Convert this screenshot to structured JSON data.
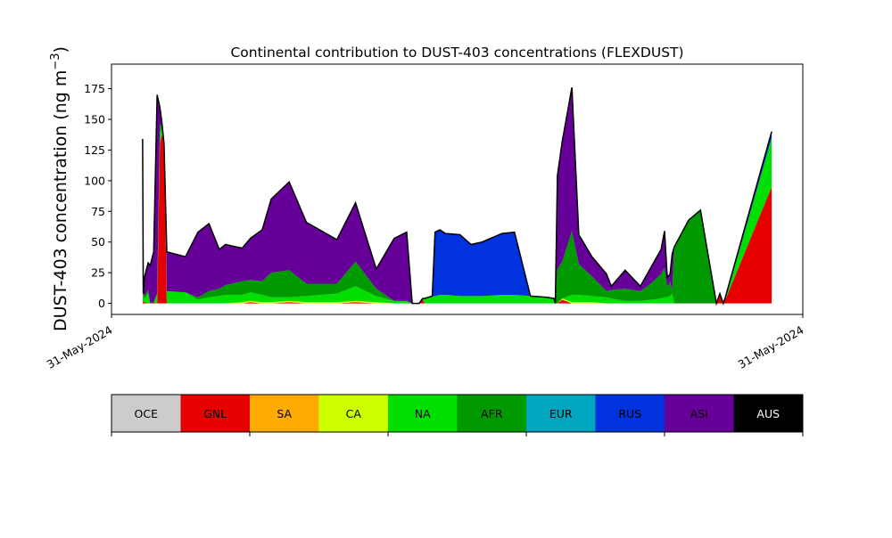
{
  "chart_data": [
    {
      "type": "area",
      "stacked": true,
      "title": "Continental contribution to DUST-403 concentrations (FLEXDUST)",
      "ylabel": "DUST-403 concentration (ng m",
      "ylabel_exponent": "−3",
      "ylabel_close": ")",
      "ylim": [
        -9,
        195
      ],
      "yticks": [
        0,
        25,
        50,
        75,
        100,
        125,
        150,
        175
      ],
      "xlim": [
        0,
        100
      ],
      "xtick_labels": [
        "31-May-2024",
        "31-May-2024"
      ],
      "grid": false,
      "x": [
        4.5,
        4.6,
        4.8,
        5.3,
        5.6,
        6.1,
        6.6,
        7.0,
        7.3,
        7.6,
        8.0,
        10.7,
        12.5,
        14.1,
        15.6,
        16.5,
        18.9,
        20.1,
        21.8,
        23.1,
        25.7,
        28.2,
        32.6,
        35.3,
        38.3,
        40.9,
        42.7,
        43.5,
        44.0,
        44.5,
        45.0,
        45.3,
        46.4,
        46.8,
        47.5,
        48.3,
        50.4,
        52.0,
        53.6,
        56.5,
        58.3,
        60.6,
        63.0,
        64.0,
        64.2,
        64.5,
        65.2,
        66.6,
        67.6,
        69.5,
        71.6,
        72.3,
        74.3,
        76.5,
        78.0,
        79.5,
        80.0,
        80.4,
        80.8,
        81.1,
        81.4,
        83.5,
        85.2,
        87.5,
        88.0,
        88.5,
        88.8,
        95.5
      ],
      "series": [
        {
          "name": "GNL",
          "color": "#e60000",
          "values": [
            0,
            2,
            1,
            0,
            0,
            1,
            0,
            130,
            138,
            130,
            0,
            0,
            0,
            0,
            0,
            0,
            0,
            1,
            0,
            0,
            1,
            0,
            0,
            1,
            0,
            0,
            0,
            0,
            0,
            0,
            4,
            0,
            0,
            0,
            0,
            0,
            0,
            0,
            0,
            0,
            0,
            0,
            0,
            0,
            0,
            0,
            3,
            0,
            0,
            0,
            0,
            0,
            0,
            0,
            0,
            0,
            0,
            0,
            0,
            0,
            0,
            0,
            0,
            0,
            8,
            0,
            3,
            95
          ]
        },
        {
          "name": "SA",
          "color": "#ffaa00",
          "values": [
            0,
            0,
            0,
            0,
            0,
            0,
            0,
            0,
            0,
            0,
            0,
            0,
            0,
            0,
            0,
            0,
            0,
            0,
            0,
            0,
            0,
            0,
            0,
            0,
            0,
            0,
            0,
            0,
            0,
            0,
            0,
            0,
            0,
            0,
            0,
            0,
            0,
            0,
            0,
            0,
            0,
            0,
            0,
            0,
            0,
            0,
            0,
            0,
            0,
            0,
            0,
            0,
            0,
            0,
            0,
            0,
            0,
            0,
            0,
            0,
            0,
            0,
            0,
            0,
            0,
            0,
            0,
            0
          ]
        },
        {
          "name": "CA",
          "color": "#ccff00",
          "values": [
            0,
            0,
            0,
            0,
            0,
            0,
            0,
            0,
            0,
            0,
            0,
            0,
            0,
            0,
            0,
            0,
            1,
            1,
            1,
            1,
            1,
            1,
            1,
            1,
            1,
            0,
            0,
            0,
            0,
            0,
            0,
            0,
            0,
            0,
            0,
            0,
            0,
            0,
            0,
            0,
            0,
            0,
            0,
            0,
            0,
            0,
            1,
            1,
            1,
            1,
            0,
            0,
            0,
            0,
            0,
            0,
            0,
            0,
            0,
            0,
            0,
            0,
            0,
            0,
            0,
            0,
            0,
            0
          ]
        },
        {
          "name": "NA",
          "color": "#00e000",
          "values": [
            12,
            3,
            3,
            8,
            0,
            0,
            8,
            10,
            4,
            0,
            10,
            9,
            3,
            5,
            6,
            7,
            6,
            7,
            6,
            4,
            3,
            5,
            7,
            12,
            5,
            2,
            2,
            0,
            0,
            0,
            0,
            4,
            6,
            6,
            7,
            7,
            6,
            6,
            6,
            7,
            7,
            6,
            5,
            4,
            0,
            0,
            0,
            6,
            6,
            5,
            5,
            4,
            2,
            2,
            3,
            4,
            5,
            5,
            6,
            8,
            0,
            0,
            0,
            0,
            0,
            0,
            0,
            40
          ]
        },
        {
          "name": "AFR",
          "color": "#009900",
          "values": [
            3,
            3,
            2,
            3,
            0,
            0,
            0,
            5,
            5,
            0,
            0,
            0,
            2,
            5,
            6,
            8,
            11,
            10,
            11,
            20,
            22,
            10,
            8,
            20,
            6,
            0,
            0,
            0,
            0,
            0,
            0,
            0,
            0,
            0,
            0,
            0,
            0,
            0,
            0,
            0,
            0,
            0,
            0,
            0,
            0,
            28,
            30,
            52,
            25,
            16,
            5,
            7,
            10,
            8,
            13,
            20,
            24,
            8,
            12,
            2,
            46,
            68,
            76,
            0,
            0,
            0,
            0,
            0
          ]
        },
        {
          "name": "EUR",
          "color": "#00a6bd",
          "values": [
            0,
            0,
            0,
            0,
            0,
            0,
            0,
            0,
            0,
            0,
            0,
            0,
            0,
            0,
            0,
            0,
            0,
            0,
            0,
            0,
            0,
            0,
            0,
            0,
            0,
            0,
            0,
            0,
            0,
            0,
            0,
            0,
            0,
            0,
            0,
            0,
            0,
            0,
            0,
            0,
            0,
            0,
            0,
            0,
            0,
            0,
            0,
            0,
            0,
            0,
            0,
            0,
            0,
            0,
            0,
            0,
            0,
            0,
            0,
            0,
            0,
            0,
            0,
            0,
            0,
            0,
            0,
            0
          ]
        },
        {
          "name": "RUS",
          "color": "#0033dd",
          "values": [
            0,
            0,
            0,
            0,
            0,
            0,
            0,
            0,
            0,
            0,
            0,
            0,
            0,
            0,
            0,
            0,
            0,
            0,
            0,
            0,
            0,
            0,
            0,
            0,
            0,
            0,
            0,
            0,
            0,
            0,
            0,
            0,
            0,
            52,
            53,
            50,
            50,
            42,
            44,
            50,
            51,
            0,
            0,
            0,
            0,
            0,
            0,
            0,
            0,
            0,
            0,
            0,
            0,
            0,
            0,
            0,
            0,
            0,
            0,
            0,
            0,
            0,
            0,
            0,
            0,
            0,
            2,
            5
          ]
        },
        {
          "name": "ASI",
          "color": "#660099",
          "values": [
            119,
            0,
            16,
            22,
            31,
            41,
            162,
            15,
            0,
            0,
            32,
            29,
            53,
            55,
            32,
            33,
            27,
            34,
            42,
            60,
            72,
            50,
            36,
            48,
            16,
            51,
            56,
            0,
            0,
            0,
            0,
            0,
            0,
            0,
            0,
            0,
            0,
            0,
            0,
            0,
            0,
            0,
            0,
            0,
            0,
            76,
            98,
            117,
            24,
            16,
            14,
            3,
            15,
            4,
            13,
            20,
            30,
            8,
            6,
            30,
            0,
            0,
            0,
            0,
            0,
            0,
            0,
            0
          ]
        },
        {
          "name": "AUS",
          "color": "#000000",
          "values": [
            0,
            0,
            0,
            0,
            0,
            0,
            0,
            0,
            0,
            0,
            0,
            0,
            0,
            0,
            0,
            0,
            0,
            0,
            0,
            0,
            0,
            0,
            0,
            0,
            0,
            0,
            0,
            0,
            0,
            0,
            0,
            0,
            0,
            0,
            0,
            0,
            0,
            0,
            0,
            0,
            0,
            0,
            0,
            0,
            0,
            0,
            0,
            0,
            0,
            0,
            0,
            0,
            0,
            0,
            0,
            0,
            0,
            0,
            0,
            0,
            0,
            0,
            0,
            0,
            0,
            0,
            0,
            0
          ]
        }
      ],
      "total_line_color": "#000000"
    },
    {
      "type": "legend",
      "entries": [
        {
          "label": "OCE",
          "color": "#cccccc"
        },
        {
          "label": "GNL",
          "color": "#e60000"
        },
        {
          "label": "SA",
          "color": "#ffaa00"
        },
        {
          "label": "CA",
          "color": "#ccff00"
        },
        {
          "label": "NA",
          "color": "#00e000"
        },
        {
          "label": "AFR",
          "color": "#009900"
        },
        {
          "label": "EUR",
          "color": "#00a6bd"
        },
        {
          "label": "RUS",
          "color": "#0033dd"
        },
        {
          "label": "ASI",
          "color": "#660099"
        },
        {
          "label": "AUS",
          "color": "#000000"
        }
      ]
    }
  ]
}
